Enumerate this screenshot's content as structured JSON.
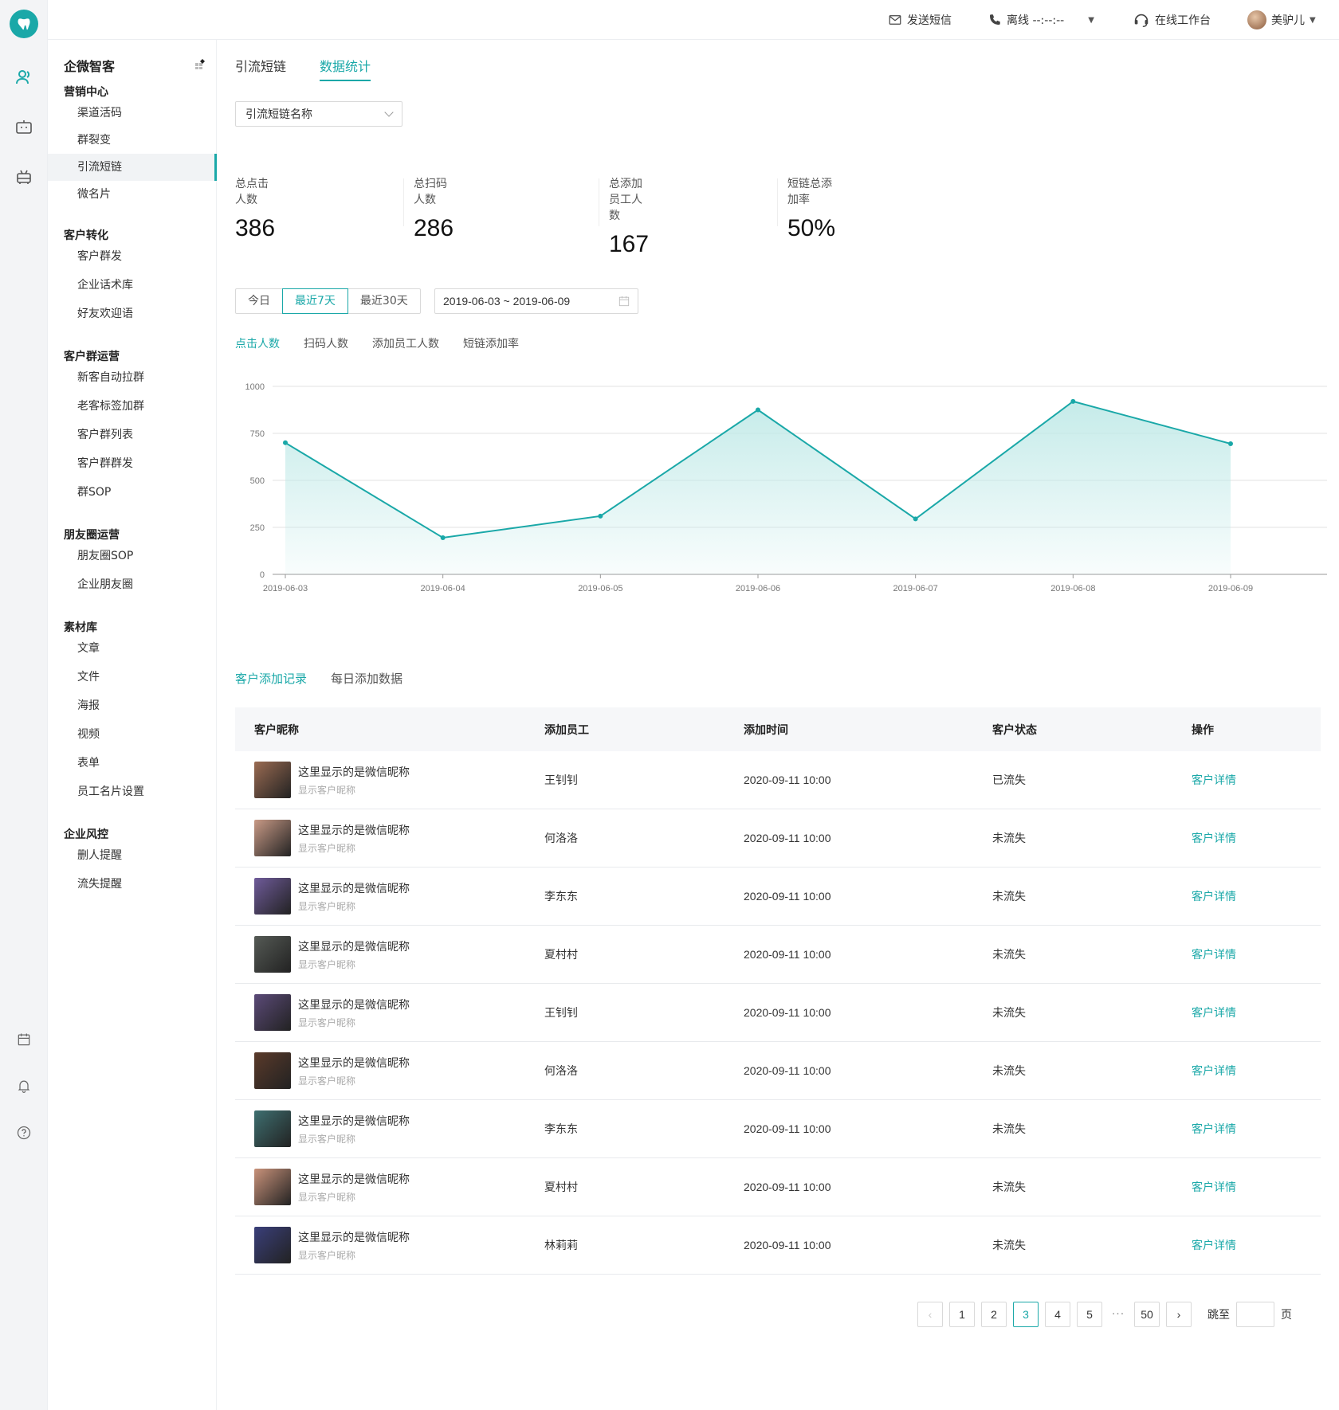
{
  "colors": {
    "accent": "#1aa8a8",
    "rail_bg": "#f3f4f6",
    "area_fill": "#bfe9e7"
  },
  "topbar": {
    "sms": "发送短信",
    "phone_status": "离线 --:--:--",
    "online_workbench": "在线工作台",
    "user_name": "美驴儿"
  },
  "sidebar": {
    "title": "企微智客",
    "groups": [
      {
        "label": "营销中心",
        "items": [
          "渠道活码",
          "群裂变",
          "引流短链",
          "微名片"
        ]
      },
      {
        "label": "客户转化",
        "items": [
          "客户群发",
          "企业话术库",
          "好友欢迎语"
        ]
      },
      {
        "label": "客户群运营",
        "items": [
          "新客自动拉群",
          "老客标签加群",
          "客户群列表",
          "客户群群发",
          "群SOP"
        ]
      },
      {
        "label": "朋友圈运营",
        "items": [
          "朋友圈SOP",
          "企业朋友圈"
        ]
      },
      {
        "label": "素材库",
        "items": [
          "文章",
          "文件",
          "海报",
          "视频",
          "表单",
          "员工名片设置"
        ]
      },
      {
        "label": "企业风控",
        "items": [
          "删人提醒",
          "流失提醒"
        ]
      }
    ],
    "active_item": "引流短链"
  },
  "tabs": [
    "引流短链",
    "数据统计"
  ],
  "active_tab": "数据统计",
  "select": {
    "placeholder": "引流短链名称"
  },
  "stats": [
    {
      "label": "总点击人数",
      "value": "386"
    },
    {
      "label": "总扫码人数",
      "value": "286"
    },
    {
      "label": "总添加员工人数",
      "value": "167"
    },
    {
      "label": "短链总添加率",
      "value": "50%"
    }
  ],
  "range_buttons": [
    "今日",
    "最近7天",
    "最近30天"
  ],
  "active_range": "最近7天",
  "date_range": "2019-06-03 ~ 2019-06-09",
  "metric_tabs": [
    "点击人数",
    "扫码人数",
    "添加员工人数",
    "短链添加率"
  ],
  "active_metric": "点击人数",
  "chart_data": {
    "type": "area",
    "x": [
      "2019-06-03",
      "2019-06-04",
      "2019-06-05",
      "2019-06-06",
      "2019-06-07",
      "2019-06-08",
      "2019-06-09"
    ],
    "series": [
      {
        "values": [
          700,
          195,
          310,
          875,
          295,
          920,
          695
        ]
      }
    ],
    "yticks": [
      0,
      250,
      500,
      750,
      1000
    ],
    "ylim": [
      0,
      1000
    ],
    "grid": true,
    "legend": "none"
  },
  "section_tabs": [
    "客户添加记录",
    "每日添加数据"
  ],
  "active_section": "客户添加记录",
  "table": {
    "headers": [
      "客户昵称",
      "添加员工",
      "添加时间",
      "客户状态",
      "操作"
    ],
    "rows": [
      {
        "name": "这里显示的是微信昵称",
        "sub": "显示客户昵称",
        "staff": "王钊钊",
        "time": "2020-09-11 10:00",
        "status": "已流失",
        "action": "客户详情",
        "avatar": "#9a6b52"
      },
      {
        "name": "这里显示的是微信昵称",
        "sub": "显示客户昵称",
        "staff": "何洛洛",
        "time": "2020-09-11 10:00",
        "status": "未流失",
        "action": "客户详情",
        "avatar": "#c99a86"
      },
      {
        "name": "这里显示的是微信昵称",
        "sub": "显示客户昵称",
        "staff": "李东东",
        "time": "2020-09-11 10:00",
        "status": "未流失",
        "action": "客户详情",
        "avatar": "#6f5b9a"
      },
      {
        "name": "这里显示的是微信昵称",
        "sub": "显示客户昵称",
        "staff": "夏村村",
        "time": "2020-09-11 10:00",
        "status": "未流失",
        "action": "客户详情",
        "avatar": "#555a55"
      },
      {
        "name": "这里显示的是微信昵称",
        "sub": "显示客户昵称",
        "staff": "王钊钊",
        "time": "2020-09-11 10:00",
        "status": "未流失",
        "action": "客户详情",
        "avatar": "#5b4a78"
      },
      {
        "name": "这里显示的是微信昵称",
        "sub": "显示客户昵称",
        "staff": "何洛洛",
        "time": "2020-09-11 10:00",
        "status": "未流失",
        "action": "客户详情",
        "avatar": "#5a3a2a"
      },
      {
        "name": "这里显示的是微信昵称",
        "sub": "显示客户昵称",
        "staff": "李东东",
        "time": "2020-09-11 10:00",
        "status": "未流失",
        "action": "客户详情",
        "avatar": "#3e6f70"
      },
      {
        "name": "这里显示的是微信昵称",
        "sub": "显示客户昵称",
        "staff": "夏村村",
        "time": "2020-09-11 10:00",
        "status": "未流失",
        "action": "客户详情",
        "avatar": "#c9927a"
      },
      {
        "name": "这里显示的是微信昵称",
        "sub": "显示客户昵称",
        "staff": "林莉莉",
        "time": "2020-09-11 10:00",
        "status": "未流失",
        "action": "客户详情",
        "avatar": "#3a3f7a"
      }
    ]
  },
  "pagination": {
    "pages": [
      "1",
      "2",
      "3",
      "4",
      "5"
    ],
    "active": "3",
    "ellipsis": "···",
    "last": "50",
    "jump_label": "跳至",
    "page_suffix": "页"
  }
}
